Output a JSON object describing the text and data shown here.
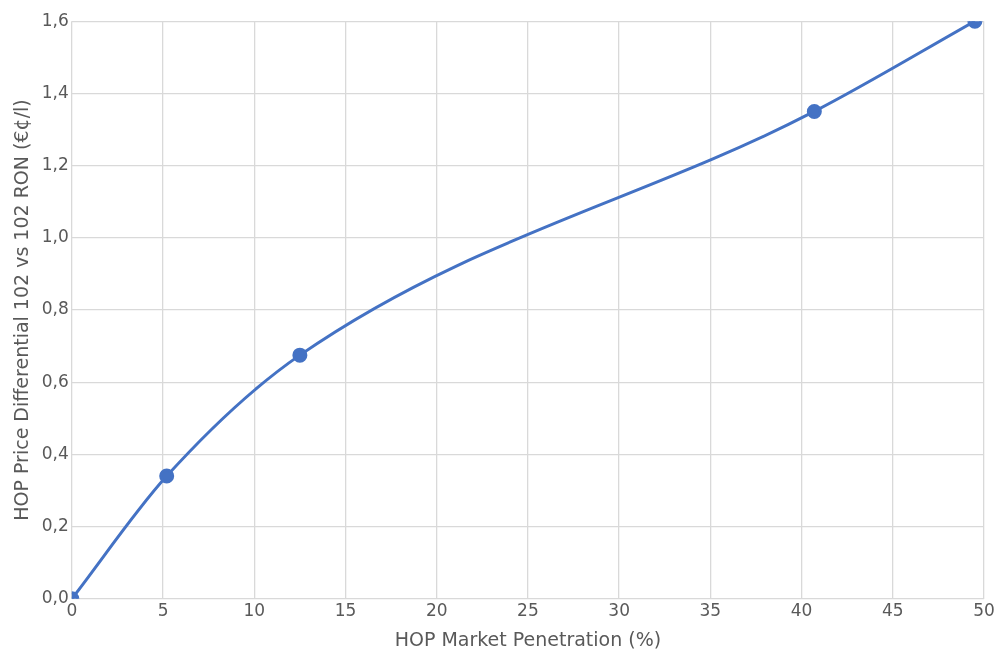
{
  "chart_data": {
    "type": "line",
    "xlabel": "HOP Market Penetration (%)",
    "ylabel": "HOP Price Differential 102 vs 102 RON (€¢/l)",
    "x": [
      0,
      5.2,
      12.5,
      40.7,
      49.5
    ],
    "series": [
      {
        "color": "#4472c4",
        "values": [
          0,
          0.34,
          0.675,
          1.35,
          1.6
        ]
      }
    ],
    "xlim": [
      0,
      50
    ],
    "xticks": [
      0,
      5,
      10,
      15,
      20,
      25,
      30,
      35,
      40,
      45,
      50
    ],
    "ylim": [
      0,
      1.6
    ],
    "yticks": [
      {
        "value": 0,
        "label": "0,0"
      },
      {
        "value": 0.2,
        "label": "0,2"
      },
      {
        "value": 0.4,
        "label": "0,4"
      },
      {
        "value": 0.6,
        "label": "0,6"
      },
      {
        "value": 0.8,
        "label": "0,8"
      },
      {
        "value": 1,
        "label": "1,0"
      },
      {
        "value": 1.2,
        "label": "1,2"
      },
      {
        "value": 1.4,
        "label": "1,4"
      },
      {
        "value": 1.6,
        "label": "1,6"
      }
    ],
    "grid": true,
    "marker": "circle",
    "line_style": "solid",
    "legend": false
  }
}
